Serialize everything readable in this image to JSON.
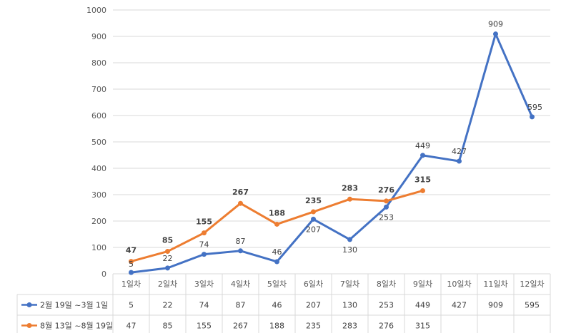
{
  "chart_data": {
    "type": "line",
    "categories": [
      "1일차",
      "2일차",
      "3일차",
      "4일차",
      "5일차",
      "6일차",
      "7일차",
      "8일차",
      "9일차",
      "10일차",
      "11일차",
      "12일차"
    ],
    "series": [
      {
        "name": "2월 19일 ~3월 1일",
        "color": "#4472C4",
        "values": [
          5,
          22,
          74,
          87,
          46,
          207,
          130,
          253,
          449,
          427,
          909,
          595
        ]
      },
      {
        "name": "8월 13일 ~8월 19일",
        "color": "#ED7D31",
        "values": [
          47,
          85,
          155,
          267,
          188,
          235,
          283,
          276,
          315,
          null,
          null,
          null
        ]
      }
    ],
    "ylim": [
      0,
      1000
    ],
    "yticks": [
      0,
      100,
      200,
      300,
      400,
      500,
      600,
      700,
      800,
      900,
      1000
    ],
    "grid": true,
    "data_table": true,
    "legend": "data-table"
  }
}
